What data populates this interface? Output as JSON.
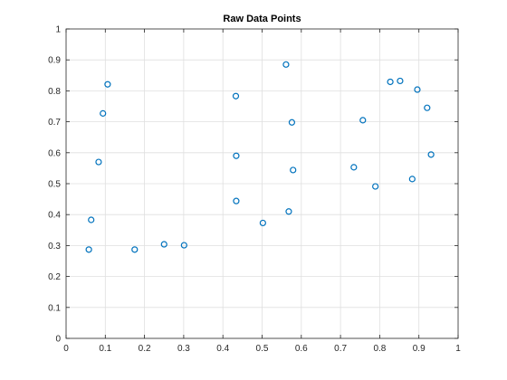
{
  "chart_data": {
    "type": "scatter",
    "title": "Raw Data Points",
    "xlabel": "",
    "ylabel": "",
    "xlim": [
      0,
      1
    ],
    "ylim": [
      0,
      1
    ],
    "xticks": [
      0,
      0.1,
      0.2,
      0.3,
      0.4,
      0.5,
      0.6,
      0.7,
      0.8,
      0.9,
      1
    ],
    "yticks": [
      0,
      0.1,
      0.2,
      0.3,
      0.4,
      0.5,
      0.6,
      0.7,
      0.8,
      0.9,
      1
    ],
    "xtick_labels": [
      "0",
      "0.1",
      "0.2",
      "0.3",
      "0.4",
      "0.5",
      "0.6",
      "0.7",
      "0.8",
      "0.9",
      "1"
    ],
    "ytick_labels": [
      "0",
      "0.1",
      "0.2",
      "0.3",
      "0.4",
      "0.5",
      "0.6",
      "0.7",
      "0.8",
      "0.9",
      "1"
    ],
    "grid": true,
    "marker": "circle",
    "series": [
      {
        "name": "Raw Data Points",
        "color": "#0072BD",
        "points": [
          {
            "x": 0.058,
            "y": 0.287
          },
          {
            "x": 0.064,
            "y": 0.383
          },
          {
            "x": 0.083,
            "y": 0.57
          },
          {
            "x": 0.094,
            "y": 0.727
          },
          {
            "x": 0.106,
            "y": 0.821
          },
          {
            "x": 0.175,
            "y": 0.287
          },
          {
            "x": 0.25,
            "y": 0.304
          },
          {
            "x": 0.301,
            "y": 0.301
          },
          {
            "x": 0.433,
            "y": 0.783
          },
          {
            "x": 0.434,
            "y": 0.59
          },
          {
            "x": 0.434,
            "y": 0.444
          },
          {
            "x": 0.502,
            "y": 0.373
          },
          {
            "x": 0.561,
            "y": 0.885
          },
          {
            "x": 0.568,
            "y": 0.41
          },
          {
            "x": 0.576,
            "y": 0.698
          },
          {
            "x": 0.579,
            "y": 0.544
          },
          {
            "x": 0.734,
            "y": 0.553
          },
          {
            "x": 0.757,
            "y": 0.705
          },
          {
            "x": 0.789,
            "y": 0.491
          },
          {
            "x": 0.827,
            "y": 0.829
          },
          {
            "x": 0.852,
            "y": 0.832
          },
          {
            "x": 0.883,
            "y": 0.515
          },
          {
            "x": 0.896,
            "y": 0.804
          },
          {
            "x": 0.921,
            "y": 0.745
          },
          {
            "x": 0.931,
            "y": 0.594
          }
        ]
      }
    ]
  }
}
